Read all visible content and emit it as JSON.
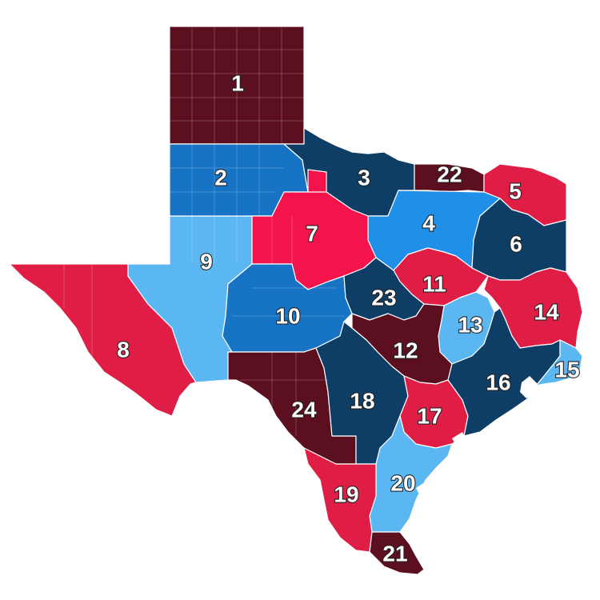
{
  "map": {
    "subject": "Texas regions",
    "colors": {
      "dark_red": "#5c0f1f",
      "red": "#e01e45",
      "bright_red": "#f5134c",
      "dark_blue": "#0e3d66",
      "mid_blue": "#1773c4",
      "blue": "#1f8fe8",
      "light_blue": "#5ab7f2"
    },
    "regions": [
      {
        "id": "1",
        "label": "1",
        "color": "dark_red"
      },
      {
        "id": "2",
        "label": "2",
        "color": "mid_blue"
      },
      {
        "id": "3",
        "label": "3",
        "color": "dark_blue"
      },
      {
        "id": "4",
        "label": "4",
        "color": "blue"
      },
      {
        "id": "5",
        "label": "5",
        "color": "red"
      },
      {
        "id": "6",
        "label": "6",
        "color": "dark_blue"
      },
      {
        "id": "7",
        "label": "7",
        "color": "bright_red"
      },
      {
        "id": "8",
        "label": "8",
        "color": "red"
      },
      {
        "id": "9",
        "label": "9",
        "color": "light_blue"
      },
      {
        "id": "10",
        "label": "10",
        "color": "mid_blue"
      },
      {
        "id": "11",
        "label": "11",
        "color": "red"
      },
      {
        "id": "12",
        "label": "12",
        "color": "dark_red"
      },
      {
        "id": "13",
        "label": "13",
        "color": "light_blue"
      },
      {
        "id": "14",
        "label": "14",
        "color": "red"
      },
      {
        "id": "15",
        "label": "15",
        "color": "light_blue"
      },
      {
        "id": "16",
        "label": "16",
        "color": "dark_blue"
      },
      {
        "id": "17",
        "label": "17",
        "color": "red"
      },
      {
        "id": "18",
        "label": "18",
        "color": "dark_blue"
      },
      {
        "id": "19",
        "label": "19",
        "color": "red"
      },
      {
        "id": "20",
        "label": "20",
        "color": "light_blue"
      },
      {
        "id": "21",
        "label": "21",
        "color": "dark_red"
      },
      {
        "id": "22",
        "label": "22",
        "color": "dark_red"
      },
      {
        "id": "23",
        "label": "23",
        "color": "dark_blue"
      },
      {
        "id": "24",
        "label": "24",
        "color": "dark_red"
      }
    ]
  }
}
